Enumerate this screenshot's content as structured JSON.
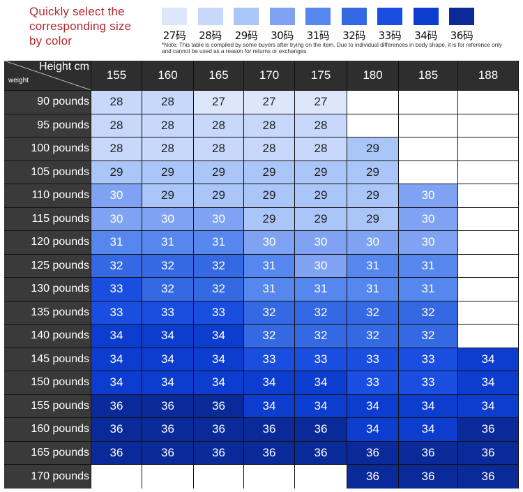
{
  "title": "Quickly select the\ncorresponding size\nby color",
  "legend": [
    {
      "label": "27码",
      "color": "#dde7fb"
    },
    {
      "label": "28码",
      "color": "#c7d8fa"
    },
    {
      "label": "29码",
      "color": "#aac5f7"
    },
    {
      "label": "30码",
      "color": "#7fa3f2"
    },
    {
      "label": "31码",
      "color": "#5687ee"
    },
    {
      "label": "32码",
      "color": "#3569e3"
    },
    {
      "label": "33码",
      "color": "#1a4ee0"
    },
    {
      "label": "34码",
      "color": "#0d3dcf"
    },
    {
      "label": "36码",
      "color": "#0a2a9a"
    }
  ],
  "note": "*Note: This table is compiled by some buyers after trying on the item. Due to individual differences in body shape, it is for reference only and cannot be used as a reason for returns or exchanges",
  "table": {
    "corner_top": "Height cm",
    "corner_bottom": "weight",
    "heights": [
      "155",
      "160",
      "165",
      "170",
      "175",
      "180",
      "185",
      "188"
    ],
    "weights": [
      "90 pounds",
      "95 pounds",
      "100 pounds",
      "105 pounds",
      "110 pounds",
      "115 pounds",
      "120 pounds",
      "125 pounds",
      "130 pounds",
      "135 pounds",
      "140 pounds",
      "145 pounds",
      "150 pounds",
      "155 pounds",
      "160 pounds",
      "165 pounds",
      "170 pounds"
    ],
    "rows": [
      [
        "28",
        "28",
        "27",
        "27",
        "27",
        "",
        "",
        ""
      ],
      [
        "28",
        "28",
        "28",
        "28",
        "28",
        "",
        "",
        ""
      ],
      [
        "28",
        "28",
        "28",
        "28",
        "28",
        "29",
        "",
        ""
      ],
      [
        "29",
        "29",
        "29",
        "29",
        "29",
        "29",
        "",
        ""
      ],
      [
        "30",
        "29",
        "29",
        "29",
        "29",
        "29",
        "30",
        ""
      ],
      [
        "30",
        "30",
        "30",
        "29",
        "29",
        "29",
        "30",
        ""
      ],
      [
        "31",
        "31",
        "31",
        "30",
        "30",
        "30",
        "30",
        ""
      ],
      [
        "32",
        "32",
        "32",
        "31",
        "30",
        "31",
        "31",
        ""
      ],
      [
        "33",
        "32",
        "32",
        "31",
        "31",
        "31",
        "31",
        ""
      ],
      [
        "33",
        "33",
        "33",
        "32",
        "32",
        "32",
        "32",
        ""
      ],
      [
        "34",
        "34",
        "34",
        "32",
        "32",
        "32",
        "32",
        ""
      ],
      [
        "34",
        "34",
        "34",
        "33",
        "33",
        "33",
        "33",
        "34"
      ],
      [
        "34",
        "34",
        "34",
        "34",
        "34",
        "33",
        "33",
        "34"
      ],
      [
        "36",
        "36",
        "36",
        "34",
        "34",
        "34",
        "34",
        "34"
      ],
      [
        "36",
        "36",
        "36",
        "36",
        "36",
        "34",
        "34",
        "36"
      ],
      [
        "36",
        "36",
        "36",
        "36",
        "36",
        "36",
        "36",
        "36"
      ],
      [
        "",
        "",
        "",
        "",
        "",
        "36",
        "36",
        "36"
      ]
    ]
  },
  "size_colors": {
    "27": "#dde7fb",
    "28": "#c7d8fa",
    "29": "#aac5f7",
    "30": "#7fa3f2",
    "31": "#5687ee",
    "32": "#3569e3",
    "33": "#1a4ee0",
    "34": "#0d3dcf",
    "36": "#0a2a9a",
    "empty": "#ffffff"
  }
}
